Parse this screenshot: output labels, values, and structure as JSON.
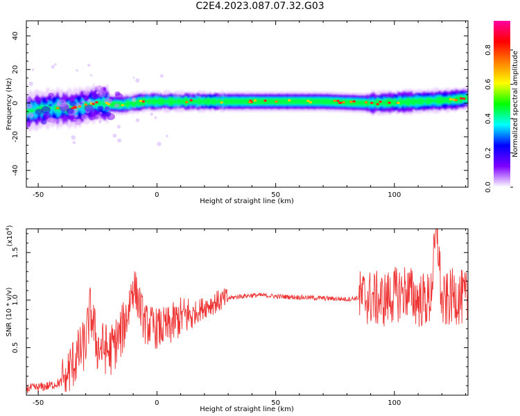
{
  "title": "C2E4.2023.087.07.32.G03",
  "chart_data": [
    {
      "type": "heatmap",
      "description_axis": "spectrogram",
      "xlabel": "Height of straight line (km)",
      "ylabel": "Frequency (Hz)",
      "xlim": [
        -55,
        131
      ],
      "ylim": [
        -50,
        49
      ],
      "xticks": [
        -50,
        0,
        50,
        100
      ],
      "xtick_labels": [
        "-50",
        "0",
        "50",
        "100"
      ],
      "yticks": [
        -40,
        -20,
        0,
        20,
        40
      ],
      "ytick_labels": [
        "-40",
        "-20",
        "0",
        "20",
        "40"
      ],
      "band_center": [
        {
          "x": -55,
          "y": -5
        },
        {
          "x": -45,
          "y": -3
        },
        {
          "x": -35,
          "y": -3
        },
        {
          "x": -25,
          "y": 0
        },
        {
          "x": -15,
          "y": -1
        },
        {
          "x": -5,
          "y": 1
        },
        {
          "x": 10,
          "y": 1
        },
        {
          "x": 30,
          "y": 1
        },
        {
          "x": 50,
          "y": 1
        },
        {
          "x": 70,
          "y": 1
        },
        {
          "x": 90,
          "y": 0
        },
        {
          "x": 110,
          "y": 1
        },
        {
          "x": 125,
          "y": 2
        },
        {
          "x": 131,
          "y": 3
        }
      ],
      "colorbar": {
        "label": "Normalized spectral amplitude",
        "range": [
          0,
          0.97
        ],
        "ticks": [
          0.0,
          0.2,
          0.4,
          0.6,
          0.8
        ],
        "tick_labels": [
          "0.0",
          "0.2",
          "0.4",
          "0.6",
          "0.8"
        ],
        "colors": [
          "#ffffff",
          "#7f00ff",
          "#0000ff",
          "#00ffff",
          "#00ff00",
          "#ffff00",
          "#ff8000",
          "#ff0000",
          "#ff00a0"
        ]
      }
    },
    {
      "type": "line",
      "xlabel": "Height of straight line (km)",
      "ylabel": "SNR (10 * v/v)",
      "y_multiplier": "(x10",
      "y_multiplier_exp": "4",
      "y_multiplier_close": ")",
      "xlim": [
        -55,
        131
      ],
      "ylim": [
        0,
        1.75
      ],
      "xticks": [
        -50,
        0,
        50,
        100
      ],
      "xtick_labels": [
        "-50",
        "0",
        "50",
        "100"
      ],
      "yticks": [
        0.5,
        1.0,
        1.5
      ],
      "ytick_labels": [
        "0.5",
        "1.0",
        "1.5"
      ],
      "series": [
        {
          "color": "#ee3333",
          "x": [
            -55,
            -50,
            -45,
            -40,
            -35,
            -30,
            -28,
            -25,
            -22,
            -20,
            -15,
            -12,
            -10,
            -5,
            0,
            5,
            10,
            15,
            20,
            25,
            30,
            35,
            40,
            45,
            50,
            60,
            70,
            80,
            88,
            95,
            100,
            105,
            110,
            115,
            118,
            120,
            125,
            131
          ],
          "y": [
            0.07,
            0.08,
            0.1,
            0.14,
            0.35,
            0.55,
            0.9,
            0.5,
            0.5,
            0.45,
            0.65,
            0.9,
            1.18,
            0.75,
            0.7,
            0.72,
            0.82,
            0.85,
            0.93,
            0.98,
            1.02,
            1.04,
            1.05,
            1.05,
            1.04,
            1.03,
            1.02,
            1.01,
            1.03,
            1.0,
            1.05,
            1.1,
            1.0,
            1.0,
            1.75,
            0.95,
            1.05,
            1.0
          ]
        }
      ]
    }
  ]
}
